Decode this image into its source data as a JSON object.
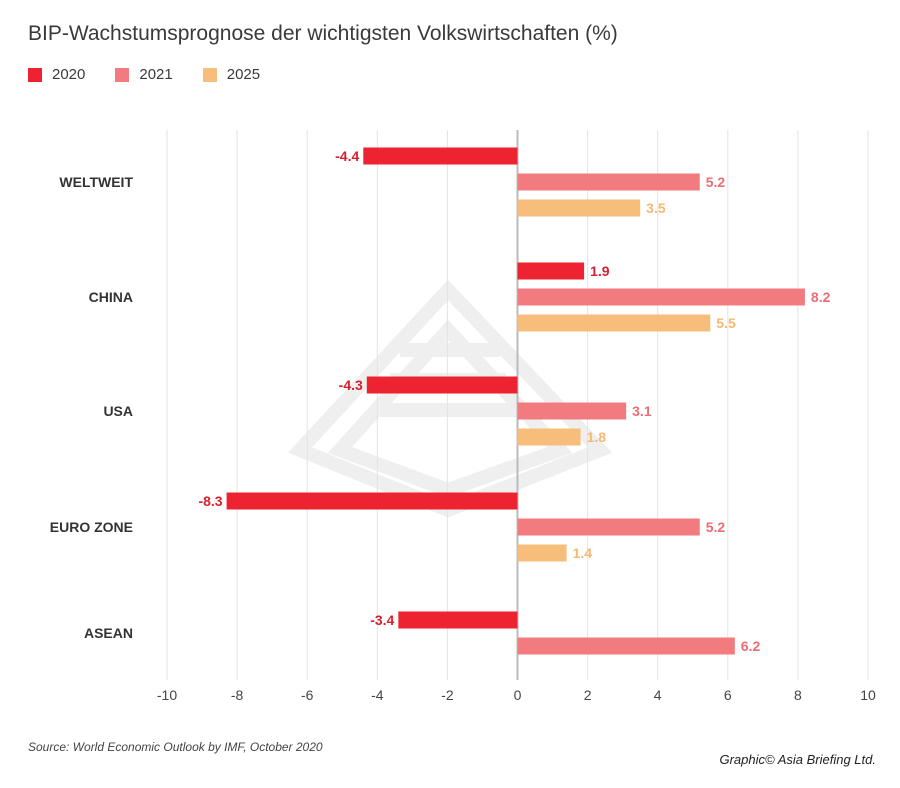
{
  "chart_data": {
    "type": "bar",
    "orientation": "horizontal",
    "title": "BIP-Wachstumsprognose der wichtigsten Volkswirtschaften (%)",
    "categories": [
      "WELTWEIT",
      "CHINA",
      "USA",
      "EURO ZONE",
      "ASEAN"
    ],
    "series": [
      {
        "name": "2020",
        "color": "#ee2331",
        "values": [
          -4.4,
          1.9,
          -4.3,
          -8.3,
          -3.4
        ]
      },
      {
        "name": "2021",
        "color": "#f27b80",
        "values": [
          5.2,
          8.2,
          3.1,
          5.2,
          6.2
        ]
      },
      {
        "name": "2025",
        "color": "#f7bd7b",
        "values": [
          3.5,
          5.5,
          1.8,
          1.4,
          null
        ]
      }
    ],
    "xlim": [
      -10,
      10
    ],
    "xticks": [
      -10,
      -8,
      -6,
      -4,
      -2,
      0,
      2,
      4,
      6,
      8,
      10
    ],
    "grid": true,
    "legend_position": "top-left"
  },
  "source": "Source: World Economic Outlook by IMF, October 2020",
  "credit": "Graphic© Asia Briefing Ltd."
}
